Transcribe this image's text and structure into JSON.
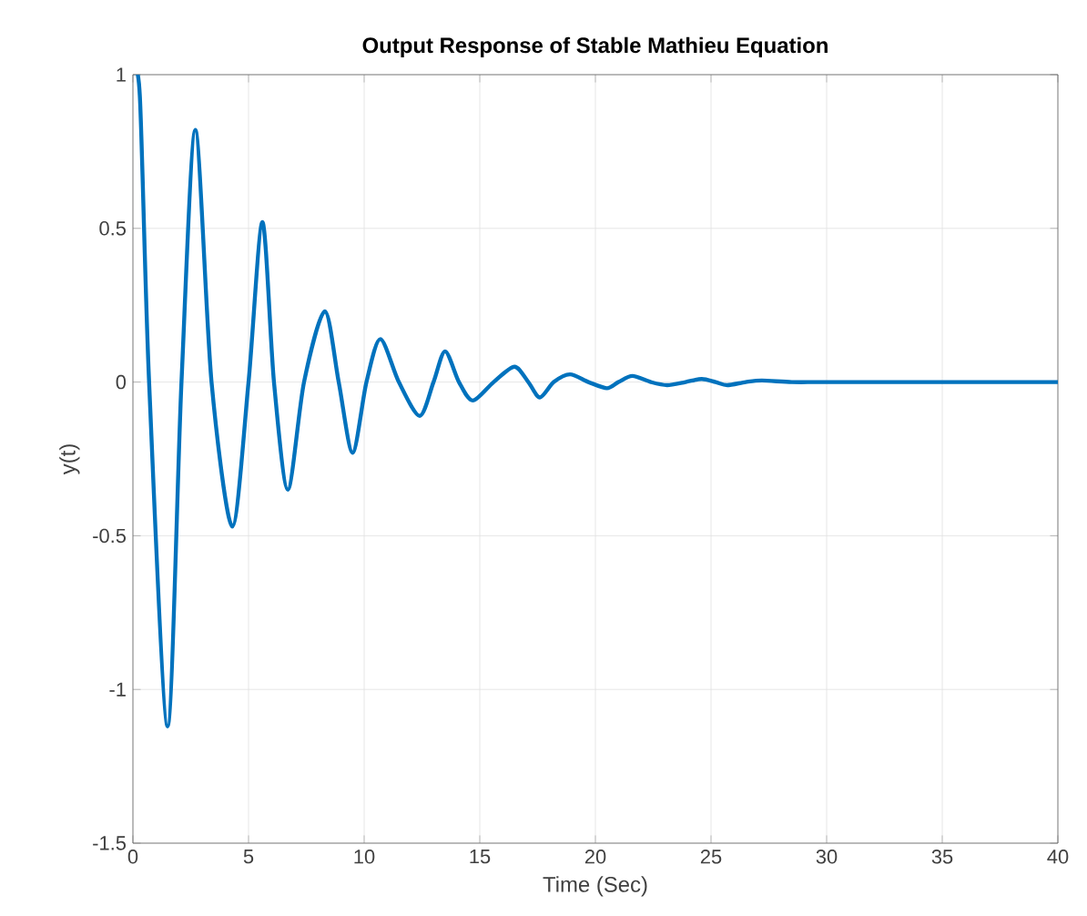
{
  "chart_data": {
    "type": "line",
    "title": "Output Response of Stable Mathieu Equation",
    "xlabel": "Time (Sec)",
    "ylabel": "y(t)",
    "xlim": [
      0,
      40
    ],
    "ylim": [
      -1.5,
      1
    ],
    "xticks": [
      0,
      5,
      10,
      15,
      20,
      25,
      30,
      35,
      40
    ],
    "yticks": [
      -1.5,
      -1,
      -0.5,
      0,
      0.5,
      1
    ],
    "grid": true,
    "series": [
      {
        "color": "#0072bd",
        "line_style": "solid",
        "x": [
          0,
          0.3,
          0.7,
          1.5,
          2.1,
          2.7,
          3.4,
          4.3,
          5.0,
          5.6,
          6.1,
          6.7,
          7.4,
          8.3,
          8.9,
          9.5,
          10.1,
          10.7,
          11.5,
          12.4,
          13.0,
          13.5,
          14.1,
          14.7,
          15.6,
          16.5,
          17.1,
          17.6,
          18.2,
          18.9,
          19.7,
          20.5,
          21.0,
          21.6,
          22.4,
          23.1,
          23.9,
          24.6,
          25.2,
          25.7,
          26.5,
          27.2,
          28.5,
          30,
          35,
          40
        ],
        "values": [
          1,
          0.93,
          0,
          -1.12,
          0,
          0.82,
          0,
          -0.47,
          0,
          0.52,
          0,
          -0.35,
          0,
          0.23,
          0,
          -0.23,
          0,
          0.14,
          0,
          -0.11,
          0,
          0.1,
          0,
          -0.06,
          0,
          0.05,
          0,
          -0.05,
          0,
          0.025,
          0,
          -0.02,
          0,
          0.02,
          0,
          -0.01,
          0,
          0.01,
          0,
          -0.01,
          0,
          0.005,
          0,
          0,
          0,
          0
        ]
      }
    ]
  }
}
